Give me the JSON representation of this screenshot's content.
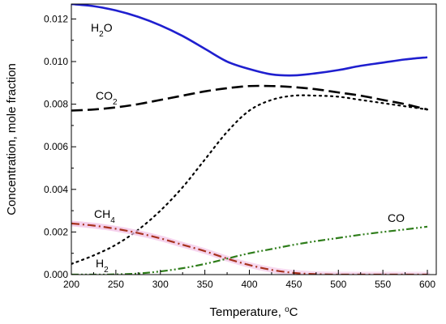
{
  "chart_data": {
    "type": "line",
    "xlabel": {
      "text": "Temperature, ",
      "unit_sup": "o",
      "unit": "C"
    },
    "ylabel": "Concentration, mole fraction",
    "xlim": [
      200,
      610
    ],
    "ylim": [
      0,
      0.0127
    ],
    "x_ticks": [
      200,
      250,
      300,
      350,
      400,
      450,
      500,
      550,
      600
    ],
    "y_ticks": [
      0.0,
      0.002,
      0.004,
      0.006,
      0.008,
      0.01,
      0.012
    ],
    "y_tick_labels": [
      "0.000",
      "0.002",
      "0.004",
      "0.006",
      "0.008",
      "0.010",
      "0.012"
    ],
    "grid": false,
    "series": [
      {
        "key": "h2o",
        "label": {
          "main": "H",
          "sub": "2",
          "rest": "O"
        },
        "color": "#1f1fcf",
        "style": "solid",
        "x": [
          200,
          225,
          250,
          275,
          300,
          325,
          350,
          375,
          400,
          425,
          450,
          475,
          500,
          525,
          550,
          575,
          600
        ],
        "y": [
          0.0127,
          0.0126,
          0.0124,
          0.0121,
          0.0117,
          0.0112,
          0.0106,
          0.01,
          0.00965,
          0.0094,
          0.00935,
          0.00945,
          0.0096,
          0.0098,
          0.00995,
          0.0101,
          0.0102
        ]
      },
      {
        "key": "co2",
        "label": {
          "main": "CO",
          "sub": "2",
          "rest": ""
        },
        "color": "#000000",
        "style": "dash",
        "x": [
          200,
          225,
          250,
          275,
          300,
          325,
          350,
          375,
          400,
          425,
          450,
          475,
          500,
          525,
          550,
          575,
          600
        ],
        "y": [
          0.0077,
          0.00775,
          0.00785,
          0.008,
          0.0082,
          0.0084,
          0.0086,
          0.00875,
          0.00885,
          0.00885,
          0.0088,
          0.0087,
          0.00855,
          0.0084,
          0.0082,
          0.008,
          0.00775
        ]
      },
      {
        "key": "h2",
        "label": {
          "main": "H",
          "sub": "2",
          "rest": ""
        },
        "color": "#000000",
        "style": "dot",
        "x": [
          200,
          225,
          250,
          275,
          300,
          325,
          350,
          375,
          400,
          425,
          450,
          475,
          500,
          525,
          550,
          575,
          600
        ],
        "y": [
          0.0005,
          0.0009,
          0.0014,
          0.0021,
          0.003,
          0.0041,
          0.0054,
          0.0067,
          0.0077,
          0.0082,
          0.0084,
          0.0084,
          0.00835,
          0.0082,
          0.00805,
          0.0079,
          0.00775
        ]
      },
      {
        "key": "ch4",
        "label": {
          "main": "CH",
          "sub": "4",
          "rest": ""
        },
        "color": "#a8321e",
        "style": "dashdot",
        "x": [
          200,
          225,
          250,
          275,
          300,
          325,
          350,
          375,
          400,
          425,
          450,
          475,
          500,
          525,
          550,
          575,
          600
        ],
        "y": [
          0.0024,
          0.0023,
          0.00215,
          0.00195,
          0.0017,
          0.0014,
          0.0011,
          0.00075,
          0.00045,
          0.00022,
          8e-05,
          2e-05,
          0.0,
          0.0,
          0.0,
          0.0,
          0.0
        ]
      },
      {
        "key": "co",
        "label": {
          "main": "CO",
          "sub": "",
          "rest": ""
        },
        "color": "#2e7d1a",
        "style": "dashdotdot",
        "x": [
          200,
          225,
          250,
          275,
          300,
          325,
          350,
          375,
          400,
          425,
          450,
          475,
          500,
          525,
          550,
          575,
          600
        ],
        "y": [
          0.0,
          0.0,
          1e-05,
          5e-05,
          0.00015,
          0.0003,
          0.0005,
          0.00075,
          0.001,
          0.0012,
          0.0014,
          0.00157,
          0.00172,
          0.00187,
          0.002,
          0.00212,
          0.00225
        ]
      }
    ]
  }
}
